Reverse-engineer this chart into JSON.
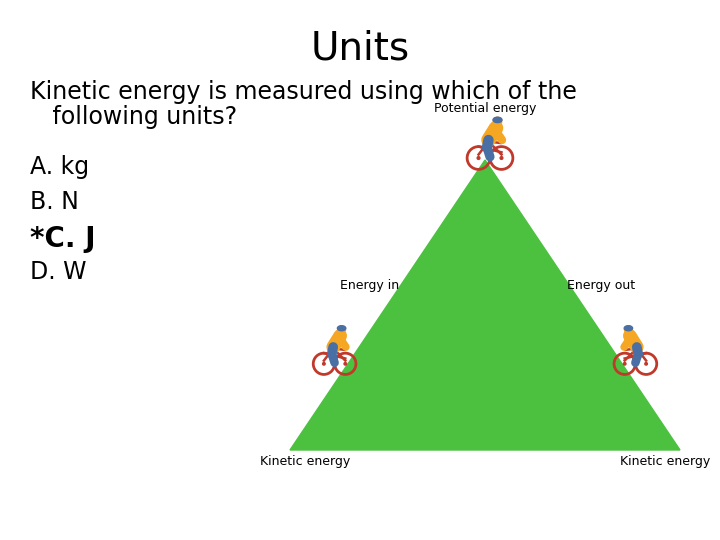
{
  "title": "Units",
  "question_line1": "Kinetic energy is measured using which of the",
  "question_line2": "   following units?",
  "options": [
    "A. kg",
    "B. N",
    "*C. J",
    "D. W"
  ],
  "option_bold": [
    false,
    false,
    true,
    false
  ],
  "background_color": "#ffffff",
  "text_color": "#000000",
  "title_fontsize": 28,
  "question_fontsize": 17,
  "option_fontsize": 17,
  "bold_option_fontsize": 20,
  "diagram": {
    "triangle_color": "#4cc140",
    "label_potential": "Potential energy",
    "label_energy_in": "Energy in",
    "label_energy_out": "Energy out",
    "label_kinetic_left": "Kinetic energy",
    "label_kinetic_right": "Kinetic energy",
    "label_fontsize": 9,
    "cyclist_body_color": "#f5a623",
    "cyclist_helmet_color": "#4a6fa5",
    "cyclist_bike_color": "#c0392b",
    "cyclist_pants_color": "#4a6fa5"
  }
}
